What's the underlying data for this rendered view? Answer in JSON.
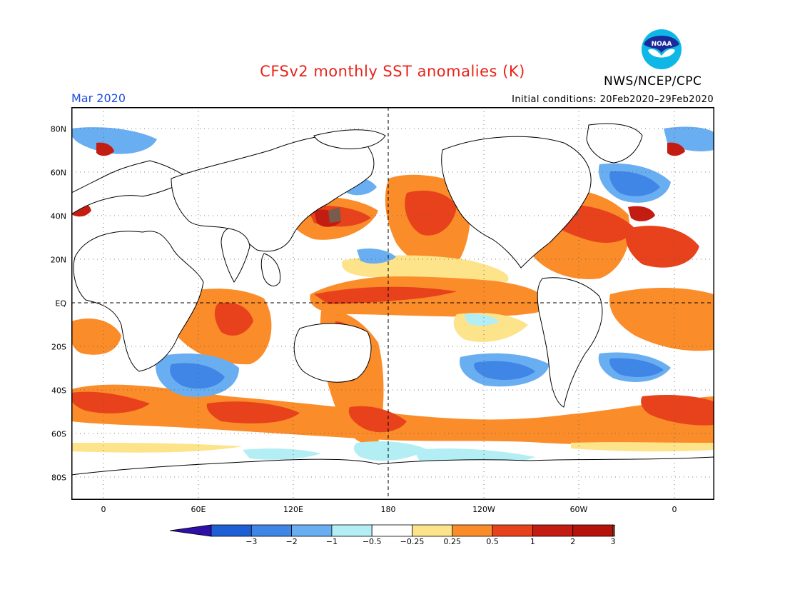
{
  "header": {
    "title": "CFSv2 monthly SST anomalies (K)",
    "agency": "NWS/NCEP/CPC",
    "month": "Mar 2020",
    "initial_conditions": "Initial conditions: 20Feb2020–29Feb2020",
    "logo_text": "NOAA"
  },
  "axes": {
    "lat_labels": [
      "80N",
      "60N",
      "40N",
      "20N",
      "EQ",
      "20S",
      "40S",
      "60S",
      "80S"
    ],
    "lon_labels": [
      "0",
      "60E",
      "120E",
      "180",
      "120W",
      "60W",
      "0"
    ],
    "grid": "dotted"
  },
  "colorbar": {
    "unit": "K",
    "labels": [
      "−3",
      "−2",
      "−1",
      "−0.5",
      "−0.25",
      "0.25",
      "0.5",
      "1",
      "2",
      "3"
    ],
    "colors": [
      "#2e0fa8",
      "#1f5fd6",
      "#3f86e6",
      "#6aaef2",
      "#b3eef4",
      "#ffffff",
      "#fde38a",
      "#fb8c2a",
      "#e8421c",
      "#c41c10",
      "#b51309",
      "#7a5a4a"
    ]
  },
  "colors": {
    "title": "#e8231a",
    "month": "#1f4de0"
  }
}
